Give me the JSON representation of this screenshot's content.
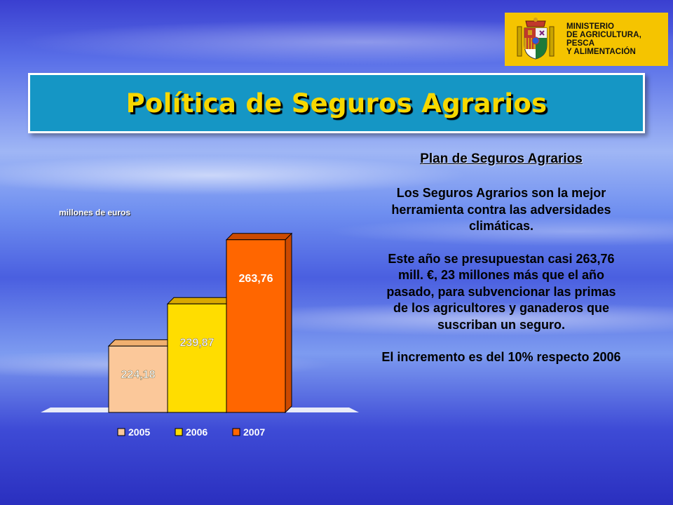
{
  "logo": {
    "line1": "MINISTERIO",
    "line2": "DE AGRICULTURA, PESCA",
    "line3": "Y ALIMENTACIÓN",
    "background": "#f5c400"
  },
  "title": "Política de Seguros Agrarios",
  "right": {
    "heading": "Plan de Seguros Agrarios",
    "para1": "Los Seguros Agrarios son la mejor herramienta contra las adversidades climáticas.",
    "para2": "Este año se presupuestan casi 263,76 mill. €, 23 millones más que el año pasado, para subvencionar las primas de los agricultores y ganaderos que suscriban un seguro.",
    "para3": "El incremento es del 10% respecto 2006"
  },
  "chart_data": {
    "type": "bar",
    "title": "",
    "ylabel": "millones de euros",
    "xlabel": "",
    "categories": [
      "2005",
      "2006",
      "2007"
    ],
    "values": [
      224.18,
      239.87,
      263.76
    ],
    "value_labels": [
      "224,18",
      "239,87",
      "263,76"
    ],
    "colors": [
      "#fbc89a",
      "#ffdd00",
      "#ff6600"
    ],
    "top_colors": [
      "#f0b070",
      "#d9a800",
      "#cc4a00"
    ],
    "legend_position": "bottom",
    "grid": false,
    "three_d": true
  }
}
